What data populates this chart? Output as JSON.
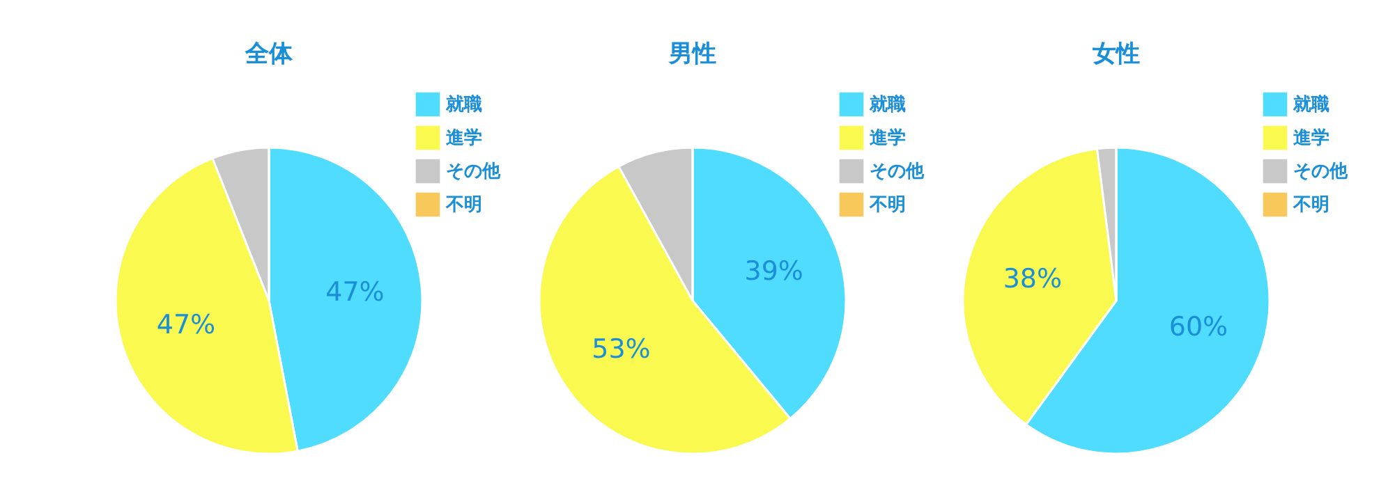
{
  "chart_data": [
    {
      "type": "pie",
      "title": "全体",
      "categories": [
        "就職",
        "進学",
        "その他",
        "不明"
      ],
      "values": [
        47,
        47,
        6,
        0
      ],
      "colors": [
        "#4fdcff",
        "#f9f94f",
        "#c8c8c8",
        "#f9c85a"
      ],
      "value_labels": [
        "47%",
        "47%",
        null,
        null
      ],
      "legend": "top right"
    },
    {
      "type": "pie",
      "title": "男性",
      "categories": [
        "就職",
        "進学",
        "その他",
        "不明"
      ],
      "values": [
        39,
        53,
        8,
        0
      ],
      "colors": [
        "#4fdcff",
        "#f9f94f",
        "#c8c8c8",
        "#f9c85a"
      ],
      "value_labels": [
        "39%",
        "53%",
        null,
        null
      ],
      "legend": "top right"
    },
    {
      "type": "pie",
      "title": "女性",
      "categories": [
        "就職",
        "進学",
        "その他",
        "不明"
      ],
      "values": [
        60,
        38,
        2,
        0
      ],
      "colors": [
        "#4fdcff",
        "#f9f94f",
        "#c8c8c8",
        "#f9c85a"
      ],
      "value_labels": [
        "60%",
        "38%",
        null,
        null
      ],
      "legend": "top right"
    }
  ]
}
